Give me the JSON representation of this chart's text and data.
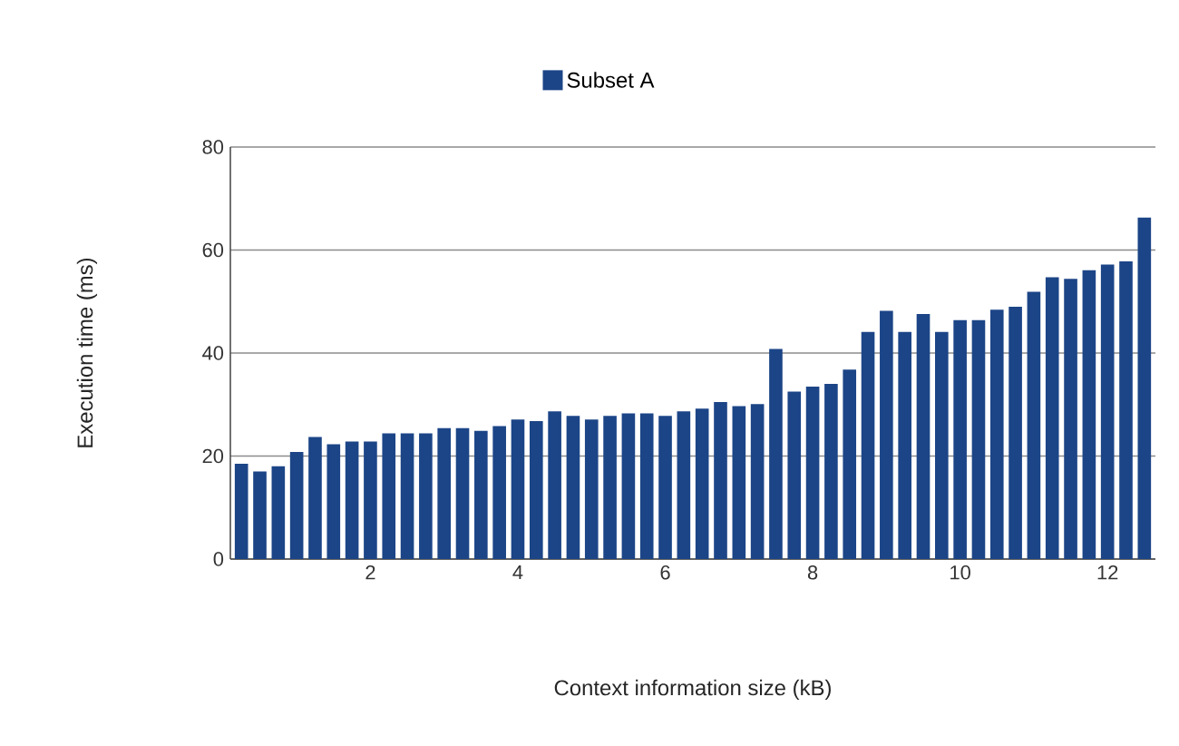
{
  "chart_data": {
    "type": "bar",
    "xlabel": "Context information size (kB)",
    "ylabel": "Execution time (ms)",
    "x": [
      0.25,
      0.5,
      0.75,
      1,
      1.25,
      1.5,
      1.75,
      2,
      2.25,
      2.5,
      2.75,
      3,
      3.25,
      3.5,
      3.75,
      4,
      4.25,
      4.5,
      4.75,
      5,
      5.25,
      5.5,
      5.75,
      6,
      6.25,
      6.5,
      6.75,
      7,
      7.25,
      7.5,
      7.75,
      8,
      8.25,
      8.5,
      8.75,
      9,
      9.25,
      9.5,
      9.75,
      10,
      10.25,
      10.5,
      10.75,
      11,
      11.25,
      11.5,
      11.75,
      12,
      12.25,
      12.5
    ],
    "series": [
      {
        "name": "Subset A",
        "color": "#1c4587",
        "values": [
          18.5,
          17.0,
          18.0,
          20.8,
          23.7,
          22.3,
          22.8,
          22.8,
          24.4,
          24.4,
          24.4,
          25.4,
          25.4,
          24.9,
          25.8,
          27.1,
          26.8,
          28.7,
          27.8,
          27.1,
          27.8,
          28.3,
          28.3,
          27.8,
          28.7,
          29.2,
          30.5,
          29.7,
          30.1,
          40.8,
          32.5,
          33.5,
          34.0,
          36.8,
          44.1,
          48.2,
          44.1,
          47.6,
          44.1,
          46.4,
          46.4,
          48.4,
          49.0,
          51.9,
          54.7,
          54.4,
          56.1,
          57.2,
          57.8,
          66.3
        ]
      }
    ],
    "xlim": [
      0.1,
      12.65
    ],
    "ylim": [
      0,
      80
    ],
    "xticks": [
      2,
      4,
      6,
      8,
      10,
      12
    ],
    "yticks": [
      0,
      20,
      40,
      60,
      80
    ],
    "grid": "y",
    "legend": "top"
  }
}
